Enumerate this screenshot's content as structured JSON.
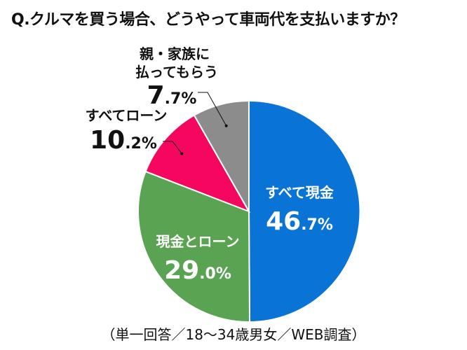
{
  "title": "Q.クルマを買う場合、どうやって車両代を支払いますか？",
  "footnote": "（単一回答／18～34歳男女／WEB調査）",
  "chart_data": {
    "type": "pie",
    "start_angle_deg": 0,
    "direction": "clockwise",
    "slices": [
      {
        "label": "すべて現金",
        "value": 46.7,
        "int_part": "46",
        "dec_part": ".7%",
        "color": "#0a74d6",
        "label_color": "#ffffff"
      },
      {
        "label": "現金とローン",
        "value": 29.0,
        "int_part": "29",
        "dec_part": ".0%",
        "color": "#5aa352",
        "label_color": "#ffffff"
      },
      {
        "label": "すべてローン",
        "value": 10.2,
        "int_part": "10",
        "dec_part": ".2%",
        "color": "#f5075f",
        "label_color": "#111111"
      },
      {
        "label": "親・家族に払ってもらう",
        "label_lines": [
          "親・家族に",
          "払ってもらう"
        ],
        "value": 7.7,
        "int_part": "7",
        "dec_part": ".7%",
        "color": "#8c8c8c",
        "label_color": "#111111"
      }
    ]
  }
}
